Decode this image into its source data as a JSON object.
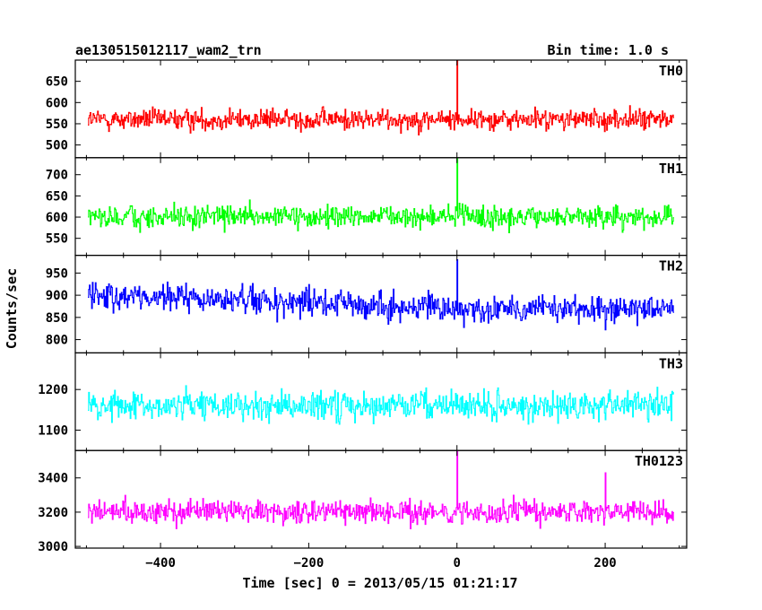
{
  "header": {
    "left": "ae130515012117_wam2_trn",
    "right": "Bin time: 1.0 s"
  },
  "chart_data": {
    "type": "line",
    "xlabel": "Time [sec] 0 = 2013/05/15 01:21:17",
    "ylabel": "Counts/sec",
    "xlim": [
      -515,
      310
    ],
    "x_ticks": [
      -400,
      -200,
      0,
      200
    ],
    "x_tick_labels": [
      "−400",
      "−200",
      "0",
      "200"
    ],
    "bin_time_s": 1.0,
    "x_range": [
      -498,
      292
    ],
    "panels": [
      {
        "name": "TH0",
        "color": "#ff0000",
        "ylim": [
          470,
          700
        ],
        "yticks": [
          500,
          550,
          600,
          650
        ],
        "mean": 560,
        "noise": 24,
        "spikes": [
          [
            0,
            700
          ]
        ]
      },
      {
        "name": "TH1",
        "color": "#00ff00",
        "ylim": [
          510,
          740
        ],
        "yticks": [
          550,
          600,
          650,
          700
        ],
        "mean": 600,
        "noise": 25,
        "spikes": [
          [
            0,
            740
          ]
        ]
      },
      {
        "name": "TH2",
        "color": "#0000ff",
        "ylim": [
          770,
          990
        ],
        "yticks": [
          800,
          850,
          900,
          950
        ],
        "mean": 870,
        "noise": 30,
        "trend_start": 900,
        "spikes": [
          [
            0,
            980
          ]
        ]
      },
      {
        "name": "TH3",
        "color": "#00ffff",
        "ylim": [
          1050,
          1290
        ],
        "yticks": [
          1100,
          1200
        ],
        "mean": 1160,
        "noise": 35,
        "spikes": []
      },
      {
        "name": "TH0123",
        "color": "#ff00ff",
        "ylim": [
          2990,
          3560
        ],
        "yticks": [
          3000,
          3200,
          3400
        ],
        "mean": 3200,
        "noise": 65,
        "spikes": [
          [
            0,
            3560
          ],
          [
            200,
            3430
          ]
        ]
      }
    ]
  }
}
